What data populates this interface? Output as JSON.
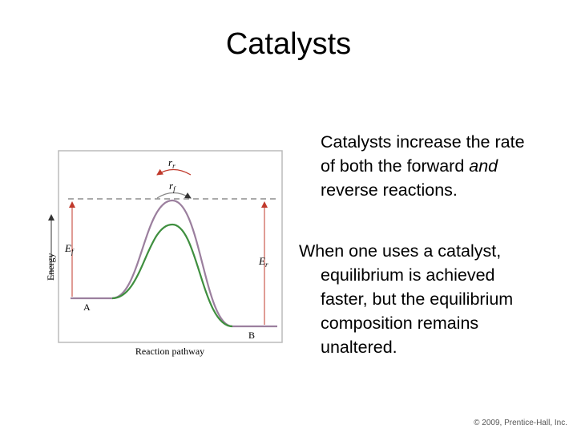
{
  "header": {
    "title": "Catalysts"
  },
  "body": {
    "paragraphs": [
      {
        "segments": [
          {
            "text": "Catalysts increase the rate of both the forward"
          },
          {
            "text": "and",
            "italic": true
          },
          {
            "text": "reverse reactions."
          }
        ]
      },
      {
        "segments": [
          {
            "text": "When one uses a catalyst, equilibrium is achieved faster, but the equilibrium composition remains unaltered."
          }
        ]
      }
    ]
  },
  "diagram": {
    "y_axis_label": "Energy",
    "x_axis_label": "Reaction pathway",
    "labels": {
      "rate_reverse": {
        "symbol": "r",
        "subscript": "r"
      },
      "rate_forward": {
        "symbol": "r",
        "subscript": "f"
      },
      "energy_forward": {
        "symbol": "E",
        "subscript": "f"
      },
      "energy_reverse": {
        "symbol": "E",
        "subscript": "r"
      },
      "reactant": "A",
      "product": "B"
    }
  },
  "footer": {
    "copyright": "© 2009, Prentice-Hall, Inc."
  }
}
